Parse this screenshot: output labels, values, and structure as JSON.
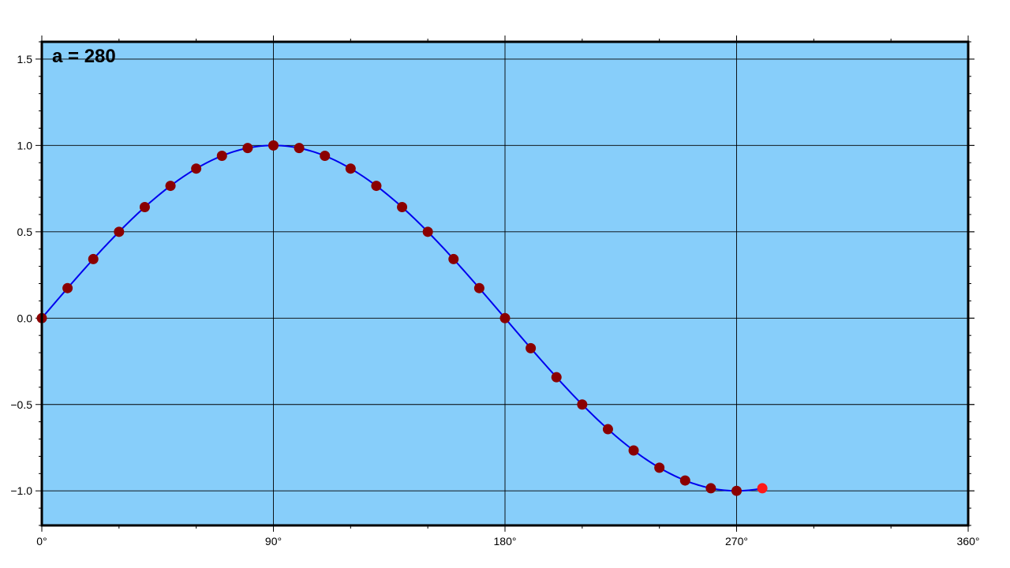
{
  "chart_data": {
    "type": "line",
    "annotation": "a = 280",
    "xlim": [
      0,
      360
    ],
    "ylim": [
      -1.2,
      1.6
    ],
    "x_ticks": [
      0,
      90,
      180,
      270,
      360
    ],
    "x_tick_labels": [
      "0°",
      "90°",
      "180°",
      "270°",
      "360°"
    ],
    "y_ticks": [
      -1.0,
      -0.5,
      0.0,
      0.5,
      1.0,
      1.5
    ],
    "y_tick_labels": [
      "−1.0",
      "−0.5",
      "0.0",
      "0.5",
      "1.0",
      "1.5"
    ],
    "grid": true,
    "series": [
      {
        "kind": "line",
        "function": "sin(x degrees)",
        "x_range": [
          0,
          280
        ],
        "color": "#0000ee"
      },
      {
        "kind": "points",
        "color": "#8b0000",
        "x": [
          0,
          10,
          20,
          30,
          40,
          50,
          60,
          70,
          80,
          90,
          100,
          110,
          120,
          130,
          140,
          150,
          160,
          170,
          180,
          190,
          200,
          210,
          220,
          230,
          240,
          250,
          260,
          270
        ],
        "y": [
          0.0,
          0.174,
          0.342,
          0.5,
          0.643,
          0.766,
          0.866,
          0.94,
          0.985,
          1.0,
          0.985,
          0.94,
          0.866,
          0.766,
          0.643,
          0.5,
          0.342,
          0.174,
          0.0,
          -0.174,
          -0.342,
          -0.5,
          -0.643,
          -0.766,
          -0.866,
          -0.94,
          -0.985,
          -1.0
        ]
      },
      {
        "kind": "current-point",
        "color": "#ff1a1a",
        "x": [
          280
        ],
        "y": [
          -0.985
        ]
      }
    ],
    "colors": {
      "plot_background": "#87cefa",
      "frame": "#000000",
      "grid": "#000000"
    }
  }
}
